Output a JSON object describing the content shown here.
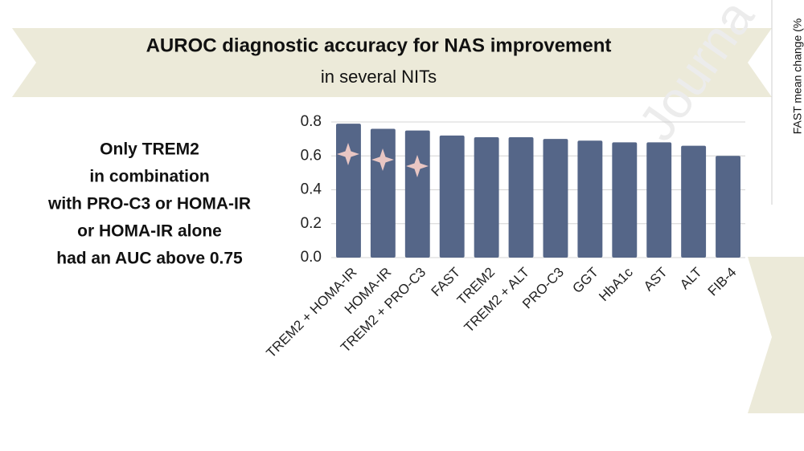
{
  "chart_data": {
    "type": "bar",
    "title": "AUROC diagnostic accuracy for NAS improvement",
    "subtitle": "in several NITs",
    "annotation": [
      "Only TREM2",
      "in combination",
      "with PRO-C3 or HOMA-IR",
      "or HOMA-IR alone",
      "had an AUC above 0.75"
    ],
    "categories": [
      "TREM2 + HOMA-IR",
      "HOMA-IR",
      "TREM2 + PRO-C3",
      "FAST",
      "TREM2",
      "TREM2 + ALT",
      "PRO-C3",
      "GGT",
      "HbA1c",
      "AST",
      "ALT",
      "FIB-4"
    ],
    "values": [
      0.79,
      0.76,
      0.75,
      0.72,
      0.71,
      0.71,
      0.7,
      0.69,
      0.68,
      0.68,
      0.66,
      0.6
    ],
    "color": "#556688",
    "ylim": [
      0,
      0.8
    ],
    "yticks": [
      {
        "value": 0,
        "label": "0.0"
      },
      0.2,
      0.4,
      0.6,
      0.8
    ],
    "grid": true,
    "side_label": "FAST mean change (%",
    "watermark": "Journa"
  }
}
